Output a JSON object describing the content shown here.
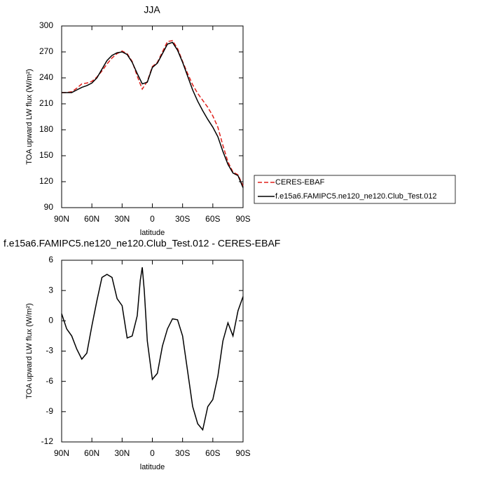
{
  "chart_data": [
    {
      "type": "line",
      "title": "JJA",
      "x_label": "latitude",
      "y_label": "TOA upward LW flux (W/m²)",
      "x": [
        90,
        85,
        80,
        75,
        70,
        65,
        60,
        55,
        50,
        45,
        40,
        35,
        30,
        25,
        20,
        15,
        10,
        5,
        0,
        -5,
        -10,
        -15,
        -20,
        -25,
        -30,
        -35,
        -40,
        -45,
        -50,
        -55,
        -60,
        -65,
        -70,
        -75,
        -80,
        -85,
        -90
      ],
      "series": [
        {
          "name": "CERES-EBAF",
          "color": "#e0201b",
          "style": "dashed",
          "values": [
            223,
            223,
            224,
            228,
            233,
            234,
            236,
            241,
            248,
            256,
            263,
            268,
            271,
            268,
            259,
            242,
            227,
            236,
            253,
            258,
            270,
            282,
            283,
            274,
            259,
            245,
            232,
            222,
            214,
            206,
            196,
            183,
            162,
            143,
            131,
            128,
            115
          ]
        },
        {
          "name": "f.e15a6.FAMIPC5.ne120_ne120.Club_Test.012",
          "color": "#000000",
          "style": "solid",
          "values": [
            223,
            223,
            223,
            226,
            229,
            231,
            234,
            240,
            250,
            260,
            266,
            269,
            270,
            267,
            258,
            245,
            233,
            235,
            252,
            257,
            268,
            279,
            281,
            272,
            258,
            242,
            226,
            213,
            202,
            192,
            183,
            172,
            155,
            140,
            130,
            127,
            113
          ]
        }
      ],
      "xlim": [
        90,
        -90
      ],
      "xticks": [
        {
          "value": 90,
          "label": "90N"
        },
        {
          "value": 60,
          "label": "60N"
        },
        {
          "value": 30,
          "label": "30N"
        },
        0,
        {
          "value": -30,
          "label": "30S"
        },
        {
          "value": -60,
          "label": "60S"
        },
        {
          "value": -90,
          "label": "90S"
        }
      ],
      "ylim": [
        90,
        300
      ],
      "yticks": [
        90,
        120,
        150,
        180,
        210,
        240,
        270,
        300
      ]
    },
    {
      "type": "line",
      "title": "f.e15a6.FAMIPC5.ne120_ne120.Club_Test.012 - CERES-EBAF",
      "x_label": "latitude",
      "y_label": "TOA upward LW flux (W/m²)",
      "x": [
        90,
        85,
        80,
        75,
        70,
        65,
        60,
        55,
        50,
        45,
        40,
        35,
        30,
        25,
        20,
        15,
        12,
        10,
        8,
        5,
        0,
        -5,
        -10,
        -15,
        -20,
        -25,
        -30,
        -35,
        -40,
        -45,
        -50,
        -55,
        -60,
        -65,
        -70,
        -75,
        -80,
        -85,
        -90
      ],
      "series": [
        {
          "color": "#000000",
          "style": "solid",
          "values": [
            0.7,
            -0.8,
            -1.5,
            -2.8,
            -3.8,
            -3.2,
            -0.5,
            2,
            4.3,
            4.6,
            4.3,
            2.2,
            1.5,
            -1.7,
            -1.5,
            0.5,
            4,
            5.3,
            3,
            -2,
            -5.8,
            -5.2,
            -2.5,
            -0.8,
            0.2,
            0.1,
            -1.5,
            -5,
            -8.5,
            -10.2,
            -10.8,
            -8.5,
            -7.8,
            -5.5,
            -2,
            -0.2,
            -1.5,
            1,
            2.4
          ]
        }
      ],
      "xlim": [
        90,
        -90
      ],
      "xticks": [
        {
          "value": 90,
          "label": "90N"
        },
        {
          "value": 60,
          "label": "60N"
        },
        {
          "value": 30,
          "label": "30N"
        },
        0,
        {
          "value": -30,
          "label": "30S"
        },
        {
          "value": -60,
          "label": "60S"
        },
        {
          "value": -90,
          "label": "90S"
        }
      ],
      "ylim": [
        -12,
        6
      ],
      "yticks": [
        -12,
        -9,
        -6,
        -3,
        0,
        3,
        6
      ]
    }
  ]
}
